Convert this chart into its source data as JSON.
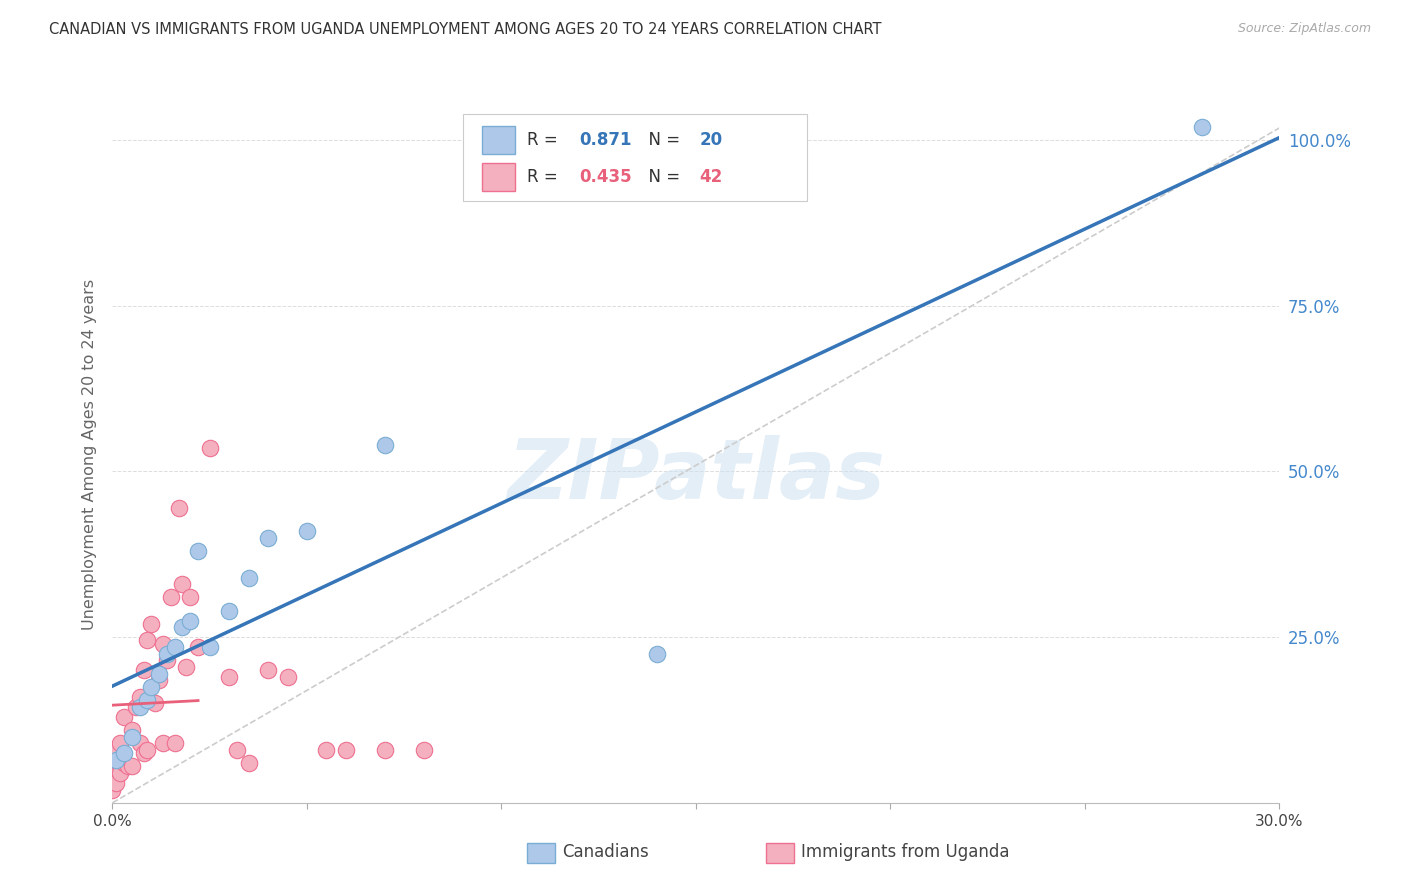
{
  "title": "CANADIAN VS IMMIGRANTS FROM UGANDA UNEMPLOYMENT AMONG AGES 20 TO 24 YEARS CORRELATION CHART",
  "source": "Source: ZipAtlas.com",
  "ylabel": "Unemployment Among Ages 20 to 24 years",
  "xmin": 0.0,
  "xmax": 0.3,
  "ymin": 0.0,
  "ymax": 1.05,
  "xticks": [
    0.0,
    0.05,
    0.1,
    0.15,
    0.2,
    0.25,
    0.3
  ],
  "xtick_labels": [
    "0.0%",
    "",
    "",
    "",
    "",
    "",
    "30.0%"
  ],
  "yticks": [
    0.0,
    0.25,
    0.5,
    0.75,
    1.0
  ],
  "ytick_labels_right": [
    "",
    "25.0%",
    "50.0%",
    "75.0%",
    "100.0%"
  ],
  "r_canadian": 0.871,
  "n_canadian": 20,
  "r_uganda": 0.435,
  "n_uganda": 42,
  "canadian_fill": "#adc8e8",
  "canadian_edge": "#7aadd4",
  "uganda_fill": "#f5b0c0",
  "uganda_edge": "#ee7090",
  "blue_line": "#3575b8",
  "pink_line": "#e8607a",
  "diagonal_color": "#cccccc",
  "background": "#ffffff",
  "grid_color": "#dddddd",
  "right_tick_color": "#4488cc",
  "watermark": "ZIPatlas",
  "canadian_x": [
    0.001,
    0.003,
    0.005,
    0.007,
    0.009,
    0.01,
    0.012,
    0.014,
    0.016,
    0.018,
    0.02,
    0.022,
    0.025,
    0.03,
    0.035,
    0.04,
    0.05,
    0.07,
    0.14,
    0.28
  ],
  "canadian_y": [
    0.065,
    0.075,
    0.1,
    0.145,
    0.155,
    0.175,
    0.195,
    0.225,
    0.235,
    0.265,
    0.275,
    0.38,
    0.235,
    0.29,
    0.34,
    0.4,
    0.41,
    0.54,
    0.225,
    1.02
  ],
  "uganda_x": [
    0.0,
    0.0,
    0.0,
    0.001,
    0.001,
    0.002,
    0.002,
    0.003,
    0.003,
    0.004,
    0.005,
    0.005,
    0.006,
    0.007,
    0.007,
    0.008,
    0.008,
    0.009,
    0.009,
    0.01,
    0.011,
    0.012,
    0.013,
    0.013,
    0.014,
    0.015,
    0.016,
    0.017,
    0.018,
    0.019,
    0.02,
    0.022,
    0.025,
    0.03,
    0.032,
    0.035,
    0.04,
    0.045,
    0.055,
    0.06,
    0.07,
    0.08
  ],
  "uganda_y": [
    0.02,
    0.04,
    0.065,
    0.03,
    0.08,
    0.045,
    0.09,
    0.06,
    0.13,
    0.055,
    0.055,
    0.11,
    0.145,
    0.09,
    0.16,
    0.075,
    0.2,
    0.08,
    0.245,
    0.27,
    0.15,
    0.185,
    0.09,
    0.24,
    0.215,
    0.31,
    0.09,
    0.445,
    0.33,
    0.205,
    0.31,
    0.235,
    0.535,
    0.19,
    0.08,
    0.06,
    0.2,
    0.19,
    0.08,
    0.08,
    0.08,
    0.08
  ]
}
